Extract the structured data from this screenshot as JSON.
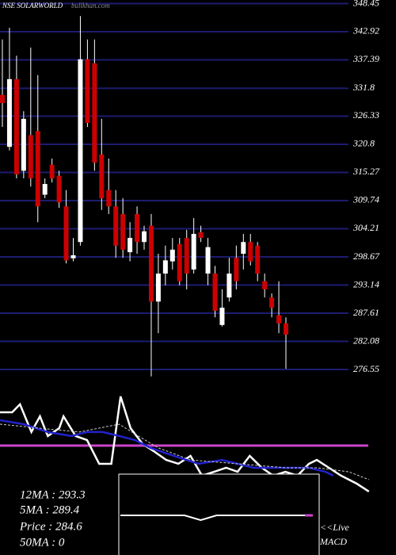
{
  "chart_data": {
    "type": "candlestick",
    "title": "NSE SOLARWORLD",
    "watermark": "bullkhan.com",
    "up_color": "#ffffff",
    "down_color": "#cc0000",
    "grid_color": "#1c1c70",
    "ylim": [
      275,
      349.15
    ],
    "yticks": [
      348.45,
      342.92,
      337.39,
      331.8,
      326.33,
      320.8,
      315.27,
      309.74,
      304.21,
      298.67,
      293.14,
      287.61,
      282.08,
      276.55
    ],
    "open": [
      330.5,
      320.3,
      333.6,
      315.6,
      322.6,
      323.4,
      310.9,
      316.8,
      314.6,
      308.6,
      298.4,
      301.6,
      337.5,
      336.7,
      318.8,
      311.8,
      308.6,
      307.1,
      299.6,
      307.1,
      301.6,
      304.8,
      289.9,
      295.4,
      297.8,
      301.2,
      302.4,
      296.2,
      303.5,
      295.4,
      295.4,
      285.3,
      290.7,
      298.5,
      299.3,
      301.6,
      300.9,
      293.9,
      290.7,
      287.2,
      285.6
    ],
    "high": [
      341.4,
      343.7,
      338.2,
      327.3,
      339.8,
      334.4,
      314.1,
      318.0,
      315.6,
      311.8,
      302.4,
      346.0,
      341.4,
      341.4,
      325.8,
      318.0,
      311.8,
      310.2,
      305.5,
      308.6,
      304.8,
      307.1,
      299.3,
      300.9,
      302.4,
      302.4,
      304.0,
      306.3,
      304.8,
      302.4,
      296.9,
      292.3,
      298.5,
      300.9,
      303.2,
      303.2,
      301.6,
      295.4,
      291.5,
      293.9,
      286.8
    ],
    "low": [
      324.2,
      319.6,
      314.1,
      314.1,
      312.5,
      305.5,
      310.2,
      313.3,
      308.3,
      297.4,
      297.8,
      300.9,
      324.2,
      315.6,
      307.9,
      307.1,
      298.5,
      298.5,
      297.8,
      299.3,
      300.1,
      275.2,
      283.7,
      293.1,
      296.2,
      293.1,
      292.3,
      295.4,
      301.6,
      293.1,
      286.8,
      285.0,
      289.9,
      292.3,
      296.2,
      297.0,
      293.9,
      290.7,
      286.8,
      283.7,
      276.7
    ],
    "close": [
      328.9,
      333.6,
      314.9,
      325.8,
      314.1,
      308.6,
      313.0,
      314.1,
      309.4,
      298.0,
      299.0,
      337.5,
      325.0,
      317.2,
      310.2,
      308.6,
      300.9,
      300.1,
      302.4,
      301.6,
      303.7,
      289.9,
      295.4,
      298.0,
      300.1,
      293.9,
      295.4,
      303.2,
      302.4,
      300.6,
      288.1,
      288.7,
      295.4,
      293.9,
      301.6,
      297.8,
      295.4,
      292.3,
      288.7,
      285.6,
      283.4
    ],
    "indicators": {
      "xlim": [
        0,
        55.5
      ],
      "ylim": [
        0,
        100
      ],
      "level": 62.7,
      "level_color": "#cc44cc",
      "series": [
        {
          "color": "#ffffff",
          "dash": false,
          "x": [
            0,
            1.7,
            2.8,
            4.4,
            5.6,
            6.7,
            8.3,
            8.9,
            10.6,
            12.2,
            13.9,
            15.6,
            16.9,
            18.3,
            20,
            21.7,
            23.3,
            25,
            26.7,
            28.3,
            30,
            31.7,
            33.3,
            35,
            36.7,
            38.3,
            40,
            41.7,
            43.3,
            44.4,
            46.1,
            47.8,
            50,
            51.7
          ],
          "values": [
            81.8,
            81.8,
            86.4,
            70.5,
            79.5,
            68.2,
            72.7,
            79.5,
            68.2,
            65.9,
            52.3,
            52.3,
            90.9,
            72.7,
            63.6,
            59.1,
            54.5,
            52.3,
            56.8,
            45.5,
            47.7,
            50,
            47.7,
            56.8,
            50,
            45.5,
            47.7,
            45.5,
            52.3,
            54.5,
            50,
            45.5,
            40.9,
            36.4
          ]
        },
        {
          "color": "#2222cc",
          "dash": false,
          "x": [
            0,
            3.3,
            6.7,
            10,
            12.2,
            14.4,
            16.7,
            18.9,
            21.1,
            24.4,
            27.8,
            31.1,
            35.6,
            40,
            43.3,
            45.6,
            46.7
          ],
          "values": [
            77.3,
            75,
            70.5,
            68.2,
            70.5,
            70.5,
            68.2,
            65.9,
            61.4,
            56.8,
            52.3,
            54.5,
            50,
            50,
            50,
            47.7,
            45.5
          ]
        },
        {
          "color": "#cccccc",
          "dash": true,
          "x": [
            0,
            5.6,
            11.1,
            16.7,
            19.4,
            22.2,
            26.7,
            33.3,
            40,
            44.4,
            48.9,
            51.7
          ],
          "values": [
            75,
            72.7,
            70.5,
            75,
            68.2,
            61.4,
            54.5,
            52.3,
            50,
            50,
            47.7,
            43.2
          ]
        }
      ]
    },
    "macd_label": "MACD",
    "live_label": "<<Live",
    "macd": {
      "xlim": [
        0,
        12
      ],
      "ylim": [
        -1,
        1
      ],
      "values": [
        0,
        0,
        0,
        0,
        0,
        -0.3,
        0,
        0,
        0,
        0,
        0,
        0,
        0
      ],
      "color": "#ffffff",
      "tail_color": "#cc44cc"
    },
    "info": [
      "12MA : 293.3",
      "5MA : 289.4",
      "Price  : 284.6",
      "50MA : 0"
    ]
  }
}
